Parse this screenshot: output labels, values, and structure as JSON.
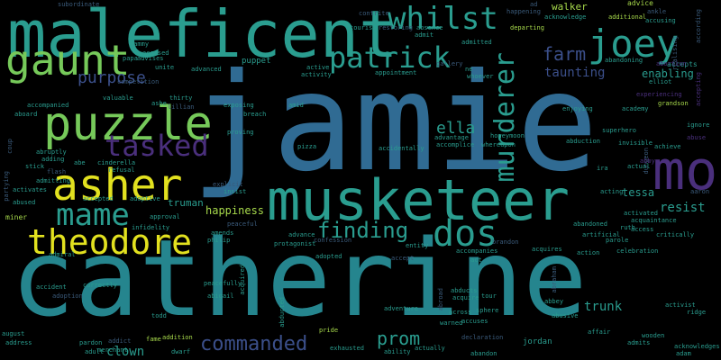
{
  "words": {
    "jamie": "jamie",
    "catherine": "catherine",
    "maleficent": "maleficent",
    "musketeer": "musketeer",
    "mo": "mo",
    "puzzle": "puzzle",
    "asher": "asher",
    "gaunt": "gaunt",
    "joey": "joey",
    "theodore": "theodore",
    "whilst": "whilst",
    "patrick": "patrick",
    "mame": "mame",
    "tasked": "tasked",
    "murderer": "murderer",
    "dos": "dos",
    "finding": "finding",
    "commanded": "commanded",
    "prom": "prom",
    "ella": "ella",
    "farm": "farm",
    "purpose": "purpose",
    "taunting": "taunting",
    "enabling": "enabling",
    "happiness": "happiness",
    "truman": "truman",
    "resist": "resist",
    "tessa": "tessa",
    "clown": "clown",
    "trunk": "trunk",
    "walker": "walker",
    "puppet": "puppet",
    "subordinate": "subordinate",
    "ad": "ad",
    "advice": "advice",
    "happening": "happening",
    "contrite": "contrite",
    "acknowledge": "acknowledge",
    "ankle": "ankle",
    "tourist": "tourist",
    "restoring": "restoring",
    "admit": "admit",
    "absence": "absence",
    "departing": "departing",
    "accusing": "accusing",
    "admitted": "admitted",
    "additional": "additional",
    "abandoning": "abandoning",
    "accepts": "accepts",
    "according": "according",
    "realising": "realising",
    "sammy": "sammy",
    "accused": "accused",
    "papa": "papa",
    "advises": "advises",
    "unite": "unite",
    "advanced": "advanced",
    "active": "active",
    "activity": "activity",
    "appointment": "appointment",
    "gallery": "gallery",
    "whoever": "whoever",
    "ne": "ne",
    "abortion": "abortion",
    "elliot": "elliot",
    "accepting": "accepting",
    "competition": "competition",
    "accompanied": "accompanied",
    "valuable": "valuable",
    "ashe": "ashe",
    "thirty": "thirty",
    "lillian": "lillian",
    "exposing": "exposing",
    "amid": "amid",
    "breach": "breach",
    "aboard": "aboard",
    "advantage": "advantage",
    "accomplice": "accomplice",
    "enjoying": "enjoying",
    "experiencing": "experiencing",
    "academy": "academy",
    "grandson": "grandson",
    "ignore": "ignore",
    "superhero": "superhero",
    "abduction": "abduction",
    "invisible": "invisible",
    "achieve": "achieve",
    "dungeon": "dungeon",
    "ira": "ira",
    "actual": "actual",
    "abby": "abby",
    "proving": "proving",
    "abe": "abe",
    "cinderella": "cinderella",
    "stick": "stick",
    "flash": "flash",
    "adding": "adding",
    "abruptly": "abruptly",
    "refusal": "refusal",
    "admitting": "admitting",
    "adoptive": "adoptive",
    "accepted": "accepted",
    "abused": "abused",
    "activates": "activates",
    "insist": "insist",
    "explicit": "explicit",
    "pizza": "pizza",
    "accidentally": "accidentally",
    "whereupon": "whereupon",
    "honeymoon": "honeymoon",
    "acting": "acting",
    "aaron": "aaron",
    "miner": "miner",
    "approval": "approval",
    "infidelity": "infidelity",
    "peaceful": "peaceful",
    "activated": "activated",
    "acquaintance": "acquaintance",
    "access": "access",
    "critically": "critically",
    "artificial": "artificial",
    "parole": "parole",
    "abandoned": "abandoned",
    "ruth": "ruth",
    "admiral": "admiral",
    "amends": "amends",
    "philip": "philip",
    "protagonist": "protagonist",
    "advance": "advance",
    "confession": "confession",
    "entity": "entity",
    "brandon": "brandon",
    "acquires": "acquires",
    "action": "action",
    "celebration": "celebration",
    "adopted": "adopted",
    "accept": "accept",
    "act": "act",
    "accompanies": "accompanies",
    "abraham": "abraham",
    "accident": "accident",
    "acquired": "acquired",
    "peacefully": "peacefully",
    "correctly": "correctly",
    "abigail": "abigail",
    "abducts": "abducts",
    "acquire": "acquire",
    "tour": "tour",
    "abbey": "abbey",
    "sphere": "sphere",
    "abroad": "abroad",
    "adoption": "adoption",
    "adventure": "adventure",
    "across": "across",
    "activist": "activist",
    "ridge": "ridge",
    "august": "august",
    "address": "address",
    "todd": "todd",
    "abusive": "abusive",
    "warned": "warned",
    "accuses": "accuses",
    "pride": "pride",
    "affair": "affair",
    "wooden": "wooden",
    "pardon": "pardon",
    "addict": "addict",
    "fame": "fame",
    "addition": "addition",
    "abducted": "abducted",
    "declaration": "declaration",
    "jordan": "jordan",
    "admits": "admits",
    "acknowledges": "acknowledges",
    "adult": "adult",
    "dwarf": "dwarf",
    "exhausted": "exhausted",
    "ability": "ability",
    "actually": "actually",
    "abandon": "abandon",
    "adam": "adam",
    "coup": "coup",
    "partying": "partying",
    "merchant": "merchant",
    "abuse": "abuse"
  },
  "colors": {
    "background": "#000000",
    "teal": "#2a9d8f",
    "blue": "#306b93",
    "green": "#76c95a",
    "yellow": "#e2e11f",
    "purple": "#4a2f7c"
  }
}
